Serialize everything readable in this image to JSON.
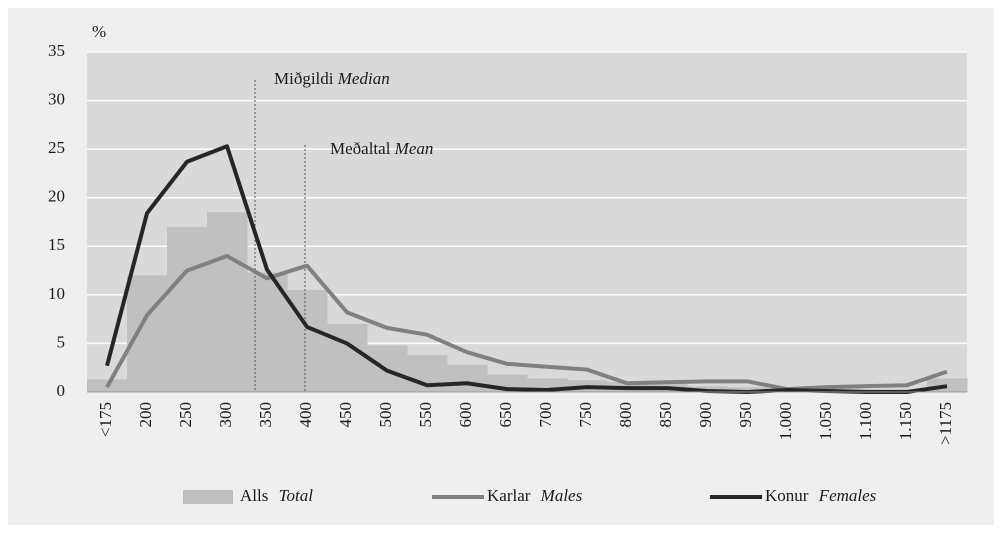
{
  "chart_data": {
    "type": "bar_line",
    "y_label": "%",
    "categories": [
      "<175",
      "200",
      "250",
      "300",
      "350",
      "400",
      "450",
      "500",
      "550",
      "600",
      "650",
      "700",
      "750",
      "800",
      "850",
      "900",
      "950",
      "1.000",
      "1.050",
      "1.100",
      "1.150",
      ">1175"
    ],
    "series": [
      {
        "name": "Alls",
        "name_en": "Total",
        "kind": "bar",
        "color": "#c0c0c0",
        "values": [
          1.3,
          12,
          17,
          18.5,
          12.3,
          10.5,
          7,
          4.8,
          3.8,
          2.8,
          1.8,
          1.4,
          1.2,
          1.0,
          0.8,
          0.6,
          0.5,
          0.4,
          0.3,
          0.3,
          0.3,
          1.4
        ]
      },
      {
        "name": "Karlar",
        "name_en": "Males",
        "kind": "line",
        "color": "#808080",
        "values": [
          0.5,
          7.9,
          12.5,
          14,
          11.7,
          13,
          8.2,
          6.6,
          5.9,
          4.1,
          2.9,
          2.6,
          2.3,
          0.9,
          1.0,
          1.1,
          1.1,
          0.3,
          0.5,
          0.6,
          0.7,
          2.1
        ]
      },
      {
        "name": "Konur",
        "name_en": "Females",
        "kind": "line",
        "color": "#262626",
        "values": [
          2.7,
          18.4,
          23.7,
          25.3,
          12.6,
          6.7,
          5.0,
          2.2,
          0.7,
          0.9,
          0.3,
          0.2,
          0.5,
          0.4,
          0.4,
          0.1,
          0.0,
          0.2,
          0.1,
          0.0,
          0.0,
          0.6
        ]
      }
    ],
    "annotations": [
      {
        "label": "Miðgildi",
        "label_en": "Median"
      },
      {
        "label": "Meðaltal",
        "label_en": "Mean"
      }
    ],
    "ylim": [
      0,
      35
    ],
    "yticks": [
      0,
      5,
      10,
      15,
      20,
      25,
      30,
      35
    ],
    "grid": true
  }
}
